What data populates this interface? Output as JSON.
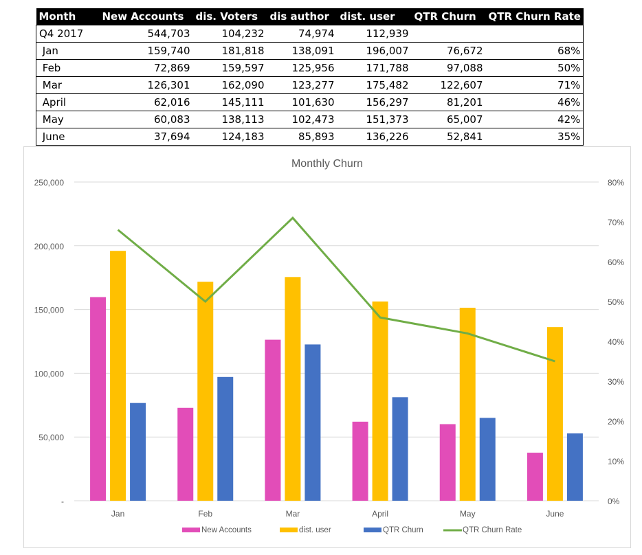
{
  "table": {
    "headers": [
      "Month",
      "New Accounts",
      "dis. Voters",
      "dis author",
      "dist. user",
      "QTR Churn",
      "QTR Churn Rate"
    ],
    "rows": [
      [
        "Q4 2017",
        "544,703",
        "104,232",
        "74,974",
        "112,939",
        "",
        ""
      ],
      [
        " Jan",
        "159,740",
        "181,818",
        "138,091",
        "196,007",
        "76,672",
        "68%"
      ],
      [
        " Feb",
        "72,869",
        "159,597",
        "125,956",
        "171,788",
        "97,088",
        "50%"
      ],
      [
        " Mar",
        "126,301",
        "162,090",
        "123,277",
        "175,482",
        "122,607",
        "71%"
      ],
      [
        " April",
        "62,016",
        "145,111",
        "101,630",
        "156,297",
        "81,201",
        "46%"
      ],
      [
        " May",
        "60,083",
        "138,113",
        "102,473",
        "151,373",
        "65,007",
        "42%"
      ],
      [
        " June",
        "37,694",
        "124,183",
        "85,893",
        "136,226",
        "52,841",
        "35%"
      ]
    ]
  },
  "chart_data": {
    "type": "bar",
    "title": "Monthly Churn",
    "categories": [
      "Jan",
      "Feb",
      "Mar",
      "April",
      "May",
      "June"
    ],
    "series": [
      {
        "name": "New Accounts",
        "type": "bar",
        "axis": "left",
        "color": "#E24DB8",
        "values": [
          159740,
          72869,
          126301,
          62016,
          60083,
          37694
        ]
      },
      {
        "name": "dist. user",
        "type": "bar",
        "axis": "left",
        "color": "#FFC000",
        "values": [
          196007,
          171788,
          175482,
          156297,
          151373,
          136226
        ]
      },
      {
        "name": "QTR Churn",
        "type": "bar",
        "axis": "left",
        "color": "#4472C4",
        "values": [
          76672,
          97088,
          122607,
          81201,
          65007,
          52841
        ]
      },
      {
        "name": "QTR Churn Rate",
        "type": "line",
        "axis": "right",
        "color": "#70AD47",
        "values": [
          0.68,
          0.5,
          0.71,
          0.46,
          0.42,
          0.35
        ]
      }
    ],
    "y_left": {
      "min": 0,
      "max": 250000,
      "ticks": [
        0,
        50000,
        100000,
        150000,
        200000,
        250000
      ],
      "tick_labels": [
        "-",
        "50,000",
        "100,000",
        "150,000",
        "200,000",
        "250,000"
      ]
    },
    "y_right": {
      "min": 0,
      "max": 0.8,
      "ticks": [
        0,
        0.1,
        0.2,
        0.3,
        0.4,
        0.5,
        0.6,
        0.7,
        0.8
      ],
      "tick_labels": [
        "0%",
        "10%",
        "20%",
        "30%",
        "40%",
        "50%",
        "60%",
        "70%",
        "80%"
      ]
    },
    "xlabel": "",
    "ylabel": "",
    "grid": true,
    "legend": "bottom"
  }
}
